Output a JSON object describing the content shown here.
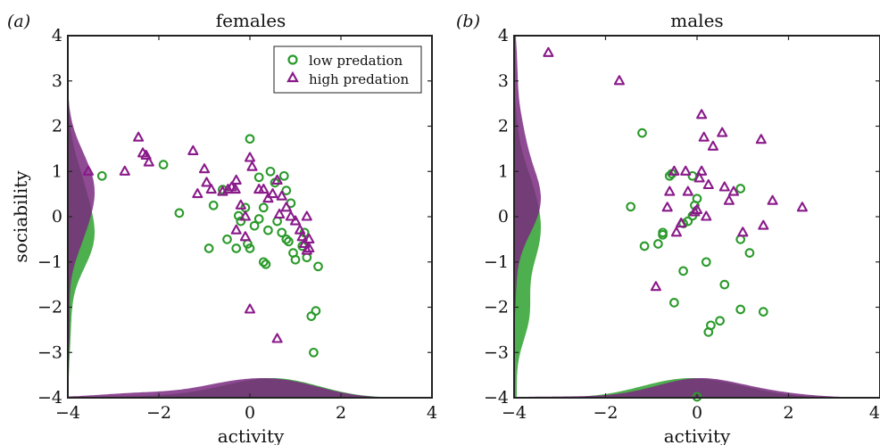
{
  "colors": {
    "low": "#2a9a2a",
    "high": "#8a1a8a",
    "low_fill": "#3aa63a",
    "high_fill": "#7a2a80"
  },
  "legend": {
    "low_label": "low predation",
    "high_label": "high predation"
  },
  "chart_data": [
    {
      "type": "scatter",
      "panel_label": "(a)",
      "title": "females",
      "xlabel": "activity",
      "ylabel": "sociability",
      "xlim": [
        -4,
        4
      ],
      "ylim": [
        -4,
        4
      ],
      "xticks": [
        "−4",
        "−2",
        "0",
        "2",
        "4"
      ],
      "yticks": [
        "4",
        "3",
        "2",
        "1",
        "0",
        "−1",
        "−2",
        "−3",
        "−4"
      ],
      "legend_position": "top-right",
      "marginal_densities": true,
      "series": [
        {
          "name": "low predation",
          "marker": "circle",
          "points": [
            [
              -3.25,
              0.9
            ],
            [
              -1.9,
              1.15
            ],
            [
              -1.55,
              0.08
            ],
            [
              -0.8,
              0.25
            ],
            [
              -0.5,
              -0.5
            ],
            [
              -0.9,
              -0.7
            ],
            [
              -0.25,
              0.02
            ],
            [
              -0.2,
              -0.1
            ],
            [
              -0.1,
              0.2
            ],
            [
              0.1,
              -0.2
            ],
            [
              0.0,
              1.72
            ],
            [
              0.2,
              0.87
            ],
            [
              0.3,
              0.2
            ],
            [
              0.2,
              -0.05
            ],
            [
              0.4,
              -0.3
            ],
            [
              0.45,
              1.0
            ],
            [
              0.55,
              0.75
            ],
            [
              0.7,
              -0.35
            ],
            [
              0.75,
              0.9
            ],
            [
              0.8,
              0.58
            ],
            [
              0.9,
              0.3
            ],
            [
              0.6,
              -0.1
            ],
            [
              0.85,
              -0.55
            ],
            [
              0.95,
              -0.8
            ],
            [
              1.0,
              -0.95
            ],
            [
              1.15,
              -0.65
            ],
            [
              1.2,
              -0.35
            ],
            [
              1.25,
              -0.9
            ],
            [
              1.5,
              -1.1
            ],
            [
              0.3,
              -1.0
            ],
            [
              0.35,
              -1.05
            ],
            [
              -0.3,
              -0.7
            ],
            [
              -0.05,
              -0.6
            ],
            [
              1.35,
              -2.2
            ],
            [
              1.45,
              -2.08
            ],
            [
              1.4,
              -3.0
            ],
            [
              0.0,
              -0.7
            ],
            [
              -0.6,
              0.6
            ],
            [
              0.8,
              -0.5
            ]
          ]
        },
        {
          "name": "high predation",
          "marker": "triangle",
          "points": [
            [
              -3.55,
              1.0
            ],
            [
              -2.75,
              1.0
            ],
            [
              -2.45,
              1.75
            ],
            [
              -2.35,
              1.4
            ],
            [
              -2.28,
              1.35
            ],
            [
              -2.22,
              1.2
            ],
            [
              -1.25,
              1.45
            ],
            [
              -1.15,
              0.5
            ],
            [
              -1.0,
              1.05
            ],
            [
              -0.95,
              0.75
            ],
            [
              -0.85,
              0.6
            ],
            [
              -0.6,
              0.55
            ],
            [
              -0.48,
              0.6
            ],
            [
              -0.4,
              0.65
            ],
            [
              -0.32,
              0.6
            ],
            [
              -0.3,
              0.8
            ],
            [
              -0.2,
              0.25
            ],
            [
              -0.3,
              -0.3
            ],
            [
              -0.1,
              0.0
            ],
            [
              0.0,
              1.3
            ],
            [
              0.05,
              1.1
            ],
            [
              0.2,
              0.6
            ],
            [
              0.3,
              0.6
            ],
            [
              0.4,
              0.4
            ],
            [
              0.5,
              0.5
            ],
            [
              0.6,
              0.8
            ],
            [
              0.7,
              0.45
            ],
            [
              0.8,
              0.2
            ],
            [
              0.9,
              0.0
            ],
            [
              1.0,
              -0.1
            ],
            [
              1.1,
              -0.3
            ],
            [
              1.2,
              -0.6
            ],
            [
              1.25,
              0.0
            ],
            [
              1.3,
              -0.5
            ],
            [
              1.3,
              -0.7
            ],
            [
              1.25,
              -0.75
            ],
            [
              0.0,
              -2.05
            ],
            [
              0.6,
              -2.7
            ],
            [
              -0.1,
              -0.45
            ],
            [
              0.65,
              0.05
            ],
            [
              1.15,
              -0.45
            ]
          ]
        }
      ]
    },
    {
      "type": "scatter",
      "panel_label": "(b)",
      "title": "males",
      "xlabel": "activity",
      "ylabel": "",
      "xlim": [
        -4,
        4
      ],
      "ylim": [
        -4,
        4
      ],
      "xticks": [
        "−4",
        "−2",
        "0",
        "2",
        "4"
      ],
      "yticks": [
        "4",
        "3",
        "2",
        "1",
        "0",
        "−1",
        "−2",
        "−3",
        "−4"
      ],
      "marginal_densities": true,
      "series": [
        {
          "name": "low predation",
          "marker": "circle",
          "points": [
            [
              -1.2,
              1.85
            ],
            [
              -1.45,
              0.22
            ],
            [
              -1.15,
              -0.65
            ],
            [
              -0.85,
              -0.6
            ],
            [
              -0.75,
              -0.35
            ],
            [
              -0.75,
              -0.4
            ],
            [
              -0.55,
              0.95
            ],
            [
              -0.6,
              0.9
            ],
            [
              -0.3,
              -0.15
            ],
            [
              -0.2,
              -0.1
            ],
            [
              -0.1,
              0.02
            ],
            [
              0.0,
              0.4
            ],
            [
              -0.1,
              0.9
            ],
            [
              -0.3,
              -1.2
            ],
            [
              -0.5,
              -1.9
            ],
            [
              0.2,
              -1.0
            ],
            [
              0.6,
              -1.5
            ],
            [
              0.5,
              -2.3
            ],
            [
              0.3,
              -2.4
            ],
            [
              0.25,
              -2.55
            ],
            [
              0.95,
              -2.05
            ],
            [
              1.45,
              -2.1
            ],
            [
              0.95,
              -0.5
            ],
            [
              1.15,
              -0.8
            ],
            [
              0.95,
              0.62
            ],
            [
              0.0,
              -3.98
            ],
            [
              -0.05,
              0.25
            ]
          ]
        },
        {
          "name": "high predation",
          "marker": "triangle",
          "points": [
            [
              -3.25,
              3.62
            ],
            [
              -1.7,
              3.0
            ],
            [
              0.1,
              2.25
            ],
            [
              0.15,
              1.75
            ],
            [
              0.55,
              1.85
            ],
            [
              0.35,
              1.55
            ],
            [
              1.4,
              1.7
            ],
            [
              0.1,
              1.0
            ],
            [
              -0.5,
              1.0
            ],
            [
              -0.25,
              1.0
            ],
            [
              0.05,
              0.85
            ],
            [
              -0.6,
              0.55
            ],
            [
              -0.2,
              0.55
            ],
            [
              0.25,
              0.7
            ],
            [
              0.6,
              0.65
            ],
            [
              0.8,
              0.55
            ],
            [
              0.7,
              0.35
            ],
            [
              1.65,
              0.35
            ],
            [
              2.3,
              0.2
            ],
            [
              -0.65,
              0.2
            ],
            [
              -0.05,
              0.1
            ],
            [
              0.0,
              0.15
            ],
            [
              0.2,
              0.0
            ],
            [
              -0.35,
              -0.15
            ],
            [
              -0.45,
              -0.35
            ],
            [
              1.0,
              -0.35
            ],
            [
              1.45,
              -0.2
            ],
            [
              -0.9,
              -1.55
            ]
          ]
        }
      ]
    }
  ]
}
